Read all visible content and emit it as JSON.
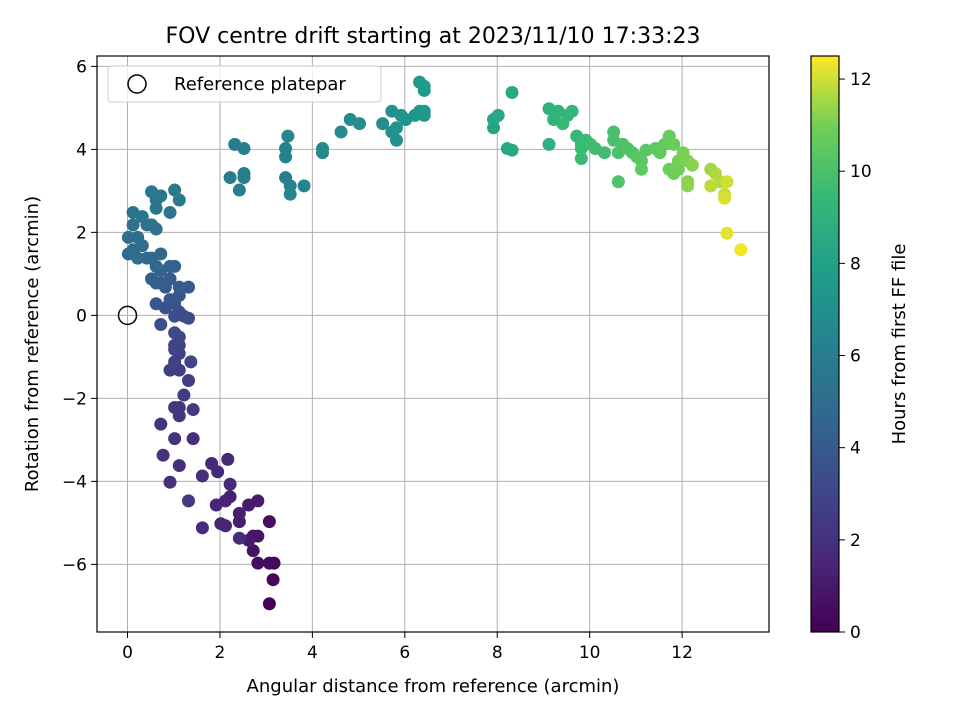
{
  "chart_data": {
    "type": "scatter",
    "title": "FOV centre drift starting at 2023/11/10 17:33:23",
    "xlabel": "Angular distance from reference (arcmin)",
    "ylabel": "Rotation from reference (arcmin)",
    "xlim": [
      -0.66,
      13.88
    ],
    "ylim": [
      -7.63,
      6.25
    ],
    "xticks": [
      0,
      2,
      4,
      6,
      8,
      10,
      12
    ],
    "yticks": [
      -6,
      -4,
      -2,
      0,
      2,
      4,
      6
    ],
    "xtick_labels": [
      "0",
      "2",
      "4",
      "6",
      "8",
      "10",
      "12"
    ],
    "ytick_labels": [
      "−6",
      "−4",
      "−2",
      "0",
      "2",
      "4",
      "6"
    ],
    "grid": true,
    "legend": {
      "label": "Reference platepar",
      "position": "top-left"
    },
    "reference_point": {
      "x": 0,
      "y": 0
    },
    "colorbar": {
      "label": "Hours from first FF file",
      "colormap": "viridis",
      "range": [
        0,
        12.5
      ],
      "ticks": [
        0,
        2,
        4,
        6,
        8,
        10,
        12
      ],
      "tick_labels": [
        "0",
        "2",
        "4",
        "6",
        "8",
        "10",
        "12"
      ]
    },
    "series": [
      {
        "points": [
          [
            3.07,
            -6.95,
            0.1
          ],
          [
            3.15,
            -6.37,
            0.2
          ],
          [
            3.17,
            -5.97,
            0.3
          ],
          [
            3.07,
            -5.97,
            0.35
          ],
          [
            2.82,
            -5.97,
            0.5
          ],
          [
            3.07,
            -4.97,
            0.6
          ],
          [
            2.72,
            -5.67,
            0.7
          ],
          [
            2.72,
            -5.32,
            0.8
          ],
          [
            2.82,
            -5.32,
            0.9
          ],
          [
            2.62,
            -5.42,
            1.0
          ],
          [
            2.62,
            -4.57,
            1.05
          ],
          [
            2.82,
            -4.47,
            1.1
          ],
          [
            2.42,
            -4.97,
            1.2
          ],
          [
            2.42,
            -4.77,
            1.25
          ],
          [
            2.22,
            -4.37,
            1.3
          ],
          [
            2.12,
            -4.47,
            1.35
          ],
          [
            2.02,
            -5.02,
            1.4
          ],
          [
            2.12,
            -5.07,
            1.45
          ],
          [
            1.92,
            -4.57,
            1.5
          ],
          [
            1.95,
            -3.77,
            1.55
          ],
          [
            1.82,
            -3.57,
            1.6
          ],
          [
            2.22,
            -4.07,
            1.65
          ],
          [
            2.17,
            -3.47,
            1.7
          ],
          [
            2.42,
            -5.37,
            1.75
          ],
          [
            1.62,
            -5.12,
            1.8
          ],
          [
            1.62,
            -3.87,
            1.85
          ],
          [
            1.12,
            -3.62,
            1.9
          ],
          [
            1.42,
            -2.97,
            1.95
          ],
          [
            0.92,
            -4.02,
            2.0
          ],
          [
            0.77,
            -3.37,
            2.05
          ],
          [
            0.72,
            -2.62,
            2.1
          ],
          [
            1.02,
            -2.97,
            2.15
          ],
          [
            1.12,
            -2.42,
            2.2
          ],
          [
            1.02,
            -2.22,
            2.25
          ],
          [
            1.12,
            -2.22,
            2.3
          ],
          [
            1.32,
            -4.47,
            2.4
          ],
          [
            1.42,
            -2.27,
            2.45
          ],
          [
            1.32,
            -1.57,
            2.5
          ],
          [
            1.22,
            -1.92,
            2.55
          ],
          [
            1.12,
            -1.32,
            2.6
          ],
          [
            0.92,
            -1.32,
            2.65
          ],
          [
            1.02,
            -1.12,
            2.7
          ],
          [
            1.12,
            -0.92,
            2.8
          ],
          [
            1.02,
            -0.82,
            2.85
          ],
          [
            1.12,
            -0.72,
            2.9
          ],
          [
            1.37,
            -1.12,
            2.95
          ],
          [
            1.02,
            -0.72,
            3.0
          ],
          [
            1.12,
            -0.52,
            3.1
          ],
          [
            1.02,
            -0.42,
            3.15
          ],
          [
            1.22,
            -0.02,
            3.2
          ],
          [
            1.02,
            -0.02,
            3.3
          ],
          [
            1.32,
            -0.07,
            3.35
          ],
          [
            1.12,
            0.08,
            3.4
          ],
          [
            0.72,
            -0.22,
            3.5
          ],
          [
            0.82,
            0.18,
            3.6
          ],
          [
            1.02,
            0.28,
            3.7
          ],
          [
            0.92,
            0.38,
            3.75
          ],
          [
            1.12,
            0.48,
            3.8
          ],
          [
            0.62,
            0.28,
            3.85
          ],
          [
            1.32,
            0.68,
            3.9
          ],
          [
            0.82,
            0.68,
            4.0
          ],
          [
            1.12,
            0.68,
            4.05
          ],
          [
            0.72,
            0.78,
            4.1
          ],
          [
            0.92,
            0.88,
            4.2
          ],
          [
            0.62,
            0.78,
            4.25
          ],
          [
            0.52,
            0.88,
            4.3
          ],
          [
            0.72,
            1.08,
            4.4
          ],
          [
            1.02,
            1.18,
            4.45
          ],
          [
            0.92,
            1.18,
            4.5
          ],
          [
            0.62,
            1.18,
            4.6
          ],
          [
            0.52,
            1.38,
            4.65
          ],
          [
            0.72,
            1.48,
            4.7
          ],
          [
            0.42,
            1.38,
            4.8
          ],
          [
            0.02,
            1.48,
            4.85
          ],
          [
            0.22,
            1.38,
            4.9
          ],
          [
            0.32,
            1.68,
            4.95
          ],
          [
            0.12,
            1.58,
            5.0
          ],
          [
            0.22,
            1.88,
            5.05
          ],
          [
            0.02,
            1.88,
            5.1
          ],
          [
            0.12,
            2.18,
            5.15
          ],
          [
            0.42,
            2.18,
            5.2
          ],
          [
            0.62,
            2.08,
            5.25
          ],
          [
            0.52,
            2.18,
            5.3
          ],
          [
            0.32,
            2.38,
            5.35
          ],
          [
            0.12,
            2.48,
            5.4
          ],
          [
            0.62,
            2.58,
            5.45
          ],
          [
            0.92,
            2.48,
            5.5
          ],
          [
            0.62,
            2.78,
            5.55
          ],
          [
            0.72,
            2.88,
            5.6
          ],
          [
            0.52,
            2.98,
            5.65
          ],
          [
            1.12,
            2.78,
            5.7
          ],
          [
            1.02,
            3.02,
            5.75
          ],
          [
            2.22,
            3.32,
            5.85
          ],
          [
            2.32,
            4.12,
            5.9
          ],
          [
            2.42,
            3.02,
            5.95
          ],
          [
            2.52,
            3.32,
            6.0
          ],
          [
            2.52,
            3.42,
            6.05
          ],
          [
            2.52,
            4.02,
            6.1
          ],
          [
            3.42,
            3.32,
            6.15
          ],
          [
            3.42,
            3.82,
            6.2
          ],
          [
            3.42,
            4.02,
            6.25
          ],
          [
            3.52,
            3.12,
            6.3
          ],
          [
            3.52,
            2.92,
            6.35
          ],
          [
            3.82,
            3.12,
            6.4
          ],
          [
            3.47,
            4.32,
            6.45
          ],
          [
            4.22,
            3.92,
            6.55
          ],
          [
            4.22,
            4.02,
            6.6
          ],
          [
            4.62,
            4.42,
            6.7
          ],
          [
            4.82,
            4.72,
            6.8
          ],
          [
            5.02,
            4.62,
            6.9
          ],
          [
            5.52,
            4.62,
            7.0
          ],
          [
            5.72,
            4.42,
            7.05
          ],
          [
            5.82,
            4.22,
            7.1
          ],
          [
            5.72,
            4.92,
            7.15
          ],
          [
            5.92,
            4.82,
            7.2
          ],
          [
            5.82,
            4.52,
            7.25
          ],
          [
            6.02,
            4.72,
            7.3
          ],
          [
            6.22,
            4.82,
            7.35
          ],
          [
            6.32,
            4.92,
            7.4
          ],
          [
            6.42,
            4.82,
            7.45
          ],
          [
            6.42,
            4.92,
            7.5
          ],
          [
            6.32,
            5.62,
            7.55
          ],
          [
            6.42,
            5.42,
            7.6
          ],
          [
            6.42,
            5.52,
            7.7
          ],
          [
            7.92,
            4.52,
            8.2
          ],
          [
            7.92,
            4.72,
            8.3
          ],
          [
            8.02,
            4.82,
            8.35
          ],
          [
            8.22,
            4.02,
            8.4
          ],
          [
            8.32,
            3.98,
            8.45
          ],
          [
            8.32,
            5.37,
            8.5
          ],
          [
            9.12,
            4.12,
            9.0
          ],
          [
            9.12,
            4.98,
            9.05
          ],
          [
            9.22,
            4.72,
            9.1
          ],
          [
            9.32,
            4.92,
            9.15
          ],
          [
            9.52,
            4.82,
            9.2
          ],
          [
            9.62,
            4.92,
            9.3
          ],
          [
            9.42,
            4.62,
            9.35
          ],
          [
            9.72,
            4.32,
            9.4
          ],
          [
            9.82,
            4.12,
            9.45
          ],
          [
            9.82,
            4.02,
            9.5
          ],
          [
            9.92,
            4.22,
            9.55
          ],
          [
            9.82,
            3.78,
            9.6
          ],
          [
            10.02,
            4.12,
            9.65
          ],
          [
            10.12,
            4.02,
            9.7
          ],
          [
            10.32,
            3.92,
            9.8
          ],
          [
            10.52,
            4.22,
            9.9
          ],
          [
            10.52,
            4.42,
            9.95
          ],
          [
            10.62,
            3.92,
            10.0
          ],
          [
            10.72,
            4.12,
            10.05
          ],
          [
            10.82,
            4.02,
            10.1
          ],
          [
            10.62,
            3.22,
            10.15
          ],
          [
            10.92,
            3.92,
            10.2
          ],
          [
            11.02,
            3.82,
            10.3
          ],
          [
            11.12,
            3.72,
            10.35
          ],
          [
            11.22,
            3.98,
            10.4
          ],
          [
            11.12,
            3.52,
            10.5
          ],
          [
            11.42,
            4.02,
            10.55
          ],
          [
            11.52,
            3.92,
            10.6
          ],
          [
            11.62,
            4.12,
            10.65
          ],
          [
            11.72,
            4.32,
            10.7
          ],
          [
            11.82,
            4.12,
            10.8
          ],
          [
            11.72,
            3.52,
            10.85
          ],
          [
            11.82,
            3.42,
            10.9
          ],
          [
            11.92,
            3.52,
            10.95
          ],
          [
            11.92,
            3.72,
            11.0
          ],
          [
            12.02,
            3.92,
            11.05
          ],
          [
            12.12,
            3.72,
            11.1
          ],
          [
            12.12,
            3.22,
            11.2
          ],
          [
            12.22,
            3.62,
            11.25
          ],
          [
            12.12,
            3.12,
            11.3
          ],
          [
            12.62,
            3.52,
            11.5
          ],
          [
            12.72,
            3.42,
            11.6
          ],
          [
            12.82,
            3.22,
            11.7
          ],
          [
            12.62,
            3.12,
            11.8
          ],
          [
            12.92,
            2.92,
            11.9
          ],
          [
            12.97,
            3.22,
            12.0
          ],
          [
            12.92,
            2.82,
            12.1
          ],
          [
            12.97,
            1.98,
            12.2
          ],
          [
            13.27,
            1.58,
            12.4
          ]
        ]
      }
    ]
  }
}
